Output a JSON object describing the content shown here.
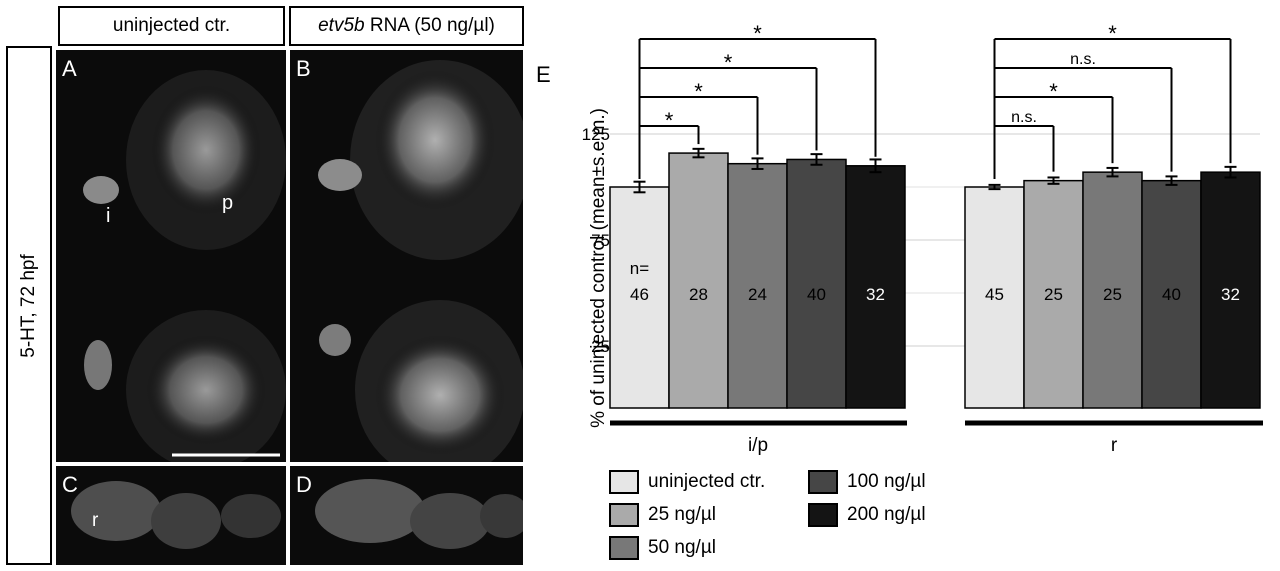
{
  "headers": {
    "control": "uninjected ctr.",
    "treated_italic": "etv5b",
    "treated_rest": " RNA (50 ng/µl)"
  },
  "side_label": "5-HT, 72 hpf",
  "panels": {
    "A": "A",
    "B": "B",
    "C": "C",
    "D": "D",
    "E": "E",
    "i": "i",
    "p": "p",
    "r_c": "r"
  },
  "chart_data": {
    "type": "bar",
    "ylabel": "% of uninjected control (mean±s.e.m.)",
    "yticks": [
      25,
      75,
      125
    ],
    "ylim": [
      0,
      140
    ],
    "groups": [
      "i/p",
      "r"
    ],
    "series": [
      {
        "name": "uninjected ctr.",
        "color": "#e6e6e6",
        "values": [
          100,
          100
        ],
        "errors": [
          2.5,
          1.0
        ],
        "n": [
          46,
          45
        ]
      },
      {
        "name": "25 ng/µl",
        "color": "#aaaaaa",
        "values": [
          116,
          103
        ],
        "errors": [
          2.0,
          1.5
        ],
        "n": [
          28,
          25
        ]
      },
      {
        "name": "50 ng/µl",
        "color": "#787878",
        "values": [
          111,
          107
        ],
        "errors": [
          2.5,
          2.0
        ],
        "n": [
          24,
          25
        ]
      },
      {
        "name": "100 ng/µl",
        "color": "#464646",
        "values": [
          113,
          103
        ],
        "errors": [
          2.5,
          2.0
        ],
        "n": [
          40,
          40
        ]
      },
      {
        "name": "200 ng/µl",
        "color": "#141414",
        "values": [
          110,
          107
        ],
        "errors": [
          3.0,
          2.5
        ],
        "n": [
          32,
          32
        ]
      }
    ],
    "n_prefix": "n=",
    "significance": [
      [
        "*",
        "*",
        "*",
        "*"
      ],
      [
        "n.s.",
        "*",
        "n.s.",
        "*"
      ]
    ]
  }
}
